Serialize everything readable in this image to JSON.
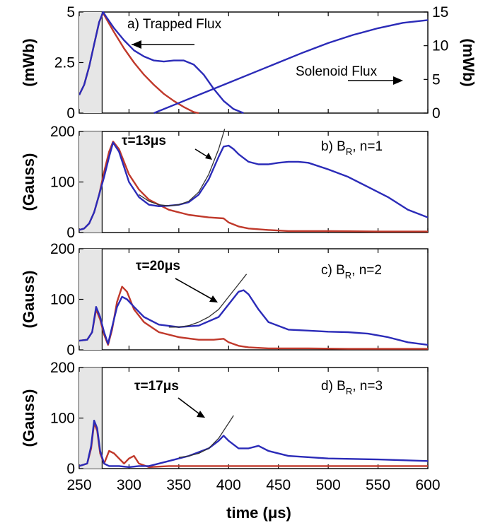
{
  "colors": {
    "blue": "#2b2bb8",
    "red": "#c0392b",
    "fit": "#333333",
    "shade": "#e6e6e6"
  },
  "chart_data": [
    {
      "type": "line",
      "panel": "a",
      "label": "a) Trapped Flux",
      "annotation_right": "Solenoid Flux",
      "ylabel": "(mWb)",
      "ylabel_right": "(mWb)",
      "xlim": [
        250,
        600
      ],
      "ylim": [
        0,
        5
      ],
      "ylim_right": [
        0,
        15
      ],
      "yticks": [
        "0",
        "2.5",
        "5"
      ],
      "yticks_right": [
        "0",
        "5",
        "10",
        "15"
      ],
      "shaded_x": [
        250,
        273
      ],
      "vline_x": 273,
      "series": [
        {
          "color": "red",
          "x": [
            250,
            255,
            260,
            265,
            270,
            274,
            278,
            285,
            295,
            305,
            315,
            325,
            335,
            345,
            355,
            365,
            370
          ],
          "y": [
            0.9,
            1.4,
            2.3,
            3.4,
            4.5,
            4.95,
            4.6,
            4.0,
            3.2,
            2.5,
            1.9,
            1.4,
            0.95,
            0.6,
            0.3,
            0.05,
            0.0
          ]
        },
        {
          "color": "blue",
          "x": [
            250,
            255,
            260,
            265,
            270,
            274,
            278,
            285,
            295,
            305,
            315,
            325,
            335,
            345,
            355,
            365,
            375,
            385,
            395,
            405,
            415
          ],
          "y": [
            0.9,
            1.4,
            2.3,
            3.4,
            4.5,
            5.0,
            4.7,
            4.2,
            3.6,
            3.1,
            2.8,
            2.6,
            2.55,
            2.6,
            2.6,
            2.4,
            1.9,
            1.2,
            0.6,
            0.2,
            0.0
          ]
        },
        {
          "color": "blue",
          "axis": "right",
          "x": [
            325,
            350,
            375,
            400,
            425,
            450,
            475,
            500,
            525,
            550,
            575,
            600
          ],
          "y": [
            0.0,
            1.5,
            3.0,
            4.5,
            6.0,
            7.5,
            9.0,
            10.4,
            11.6,
            12.6,
            13.4,
            13.8
          ]
        }
      ]
    },
    {
      "type": "line",
      "panel": "b",
      "label_main": "b) B",
      "label_sub": "R",
      "label_tail": ", n=1",
      "tau": "τ=13μs",
      "ylabel": "(Gauss)",
      "xlim": [
        250,
        600
      ],
      "ylim": [
        0,
        200
      ],
      "yticks": [
        "0",
        "100",
        "200"
      ],
      "shaded_x": [
        250,
        273
      ],
      "vline_x": 273,
      "series": [
        {
          "color": "red",
          "x": [
            250,
            255,
            260,
            265,
            270,
            275,
            280,
            284,
            290,
            295,
            300,
            310,
            320,
            330,
            340,
            360,
            380,
            395,
            400,
            410,
            420,
            440,
            460,
            500,
            550,
            600
          ],
          "y": [
            5,
            8,
            18,
            40,
            75,
            120,
            160,
            180,
            165,
            140,
            115,
            85,
            65,
            55,
            45,
            35,
            30,
            28,
            20,
            12,
            8,
            5,
            3,
            3,
            2,
            2
          ]
        },
        {
          "color": "blue",
          "x": [
            250,
            255,
            260,
            265,
            270,
            275,
            280,
            284,
            290,
            295,
            300,
            310,
            320,
            330,
            340,
            350,
            360,
            370,
            380,
            390,
            395,
            400,
            405,
            410,
            420,
            430,
            440,
            450,
            460,
            470,
            480,
            500,
            520,
            540,
            560,
            580,
            600
          ],
          "y": [
            5,
            8,
            18,
            40,
            75,
            110,
            150,
            178,
            160,
            130,
            100,
            70,
            55,
            52,
            53,
            55,
            60,
            75,
            105,
            150,
            170,
            172,
            165,
            155,
            140,
            135,
            135,
            138,
            140,
            140,
            138,
            125,
            110,
            90,
            70,
            45,
            30
          ]
        },
        {
          "color": "fit",
          "x": [
            310,
            320,
            330,
            340,
            350,
            360,
            370,
            380,
            390,
            396
          ],
          "y": [
            75,
            62,
            55,
            53,
            55,
            62,
            80,
            115,
            165,
            205
          ]
        }
      ]
    },
    {
      "type": "line",
      "panel": "c",
      "label_main": "c) B",
      "label_sub": "R",
      "label_tail": ", n=2",
      "tau": "τ=20μs",
      "ylabel": "(Gauss)",
      "xlim": [
        250,
        600
      ],
      "ylim": [
        0,
        200
      ],
      "yticks": [
        "0",
        "100",
        "200"
      ],
      "shaded_x": [
        250,
        273
      ],
      "vline_x": 273,
      "series": [
        {
          "color": "red",
          "x": [
            250,
            258,
            263,
            267,
            271,
            275,
            279,
            283,
            288,
            293,
            298,
            305,
            315,
            330,
            350,
            370,
            385,
            395,
            400,
            410,
            420,
            440,
            480,
            520,
            560,
            600
          ],
          "y": [
            18,
            20,
            35,
            80,
            60,
            30,
            10,
            40,
            95,
            125,
            115,
            80,
            55,
            35,
            25,
            20,
            20,
            22,
            15,
            8,
            5,
            3,
            3,
            2,
            2,
            2
          ]
        },
        {
          "color": "blue",
          "x": [
            250,
            258,
            263,
            267,
            271,
            275,
            279,
            283,
            288,
            293,
            298,
            305,
            315,
            330,
            350,
            370,
            390,
            400,
            410,
            415,
            420,
            430,
            440,
            460,
            480,
            500,
            520,
            540,
            560,
            580,
            600
          ],
          "y": [
            18,
            20,
            35,
            85,
            65,
            35,
            12,
            45,
            85,
            105,
            100,
            85,
            65,
            50,
            45,
            48,
            65,
            90,
            115,
            118,
            110,
            80,
            55,
            40,
            38,
            36,
            35,
            32,
            25,
            15,
            10
          ]
        },
        {
          "color": "fit",
          "x": [
            340,
            350,
            360,
            370,
            380,
            390,
            400,
            410,
            418
          ],
          "y": [
            45,
            45,
            48,
            55,
            65,
            80,
            105,
            130,
            150
          ]
        }
      ]
    },
    {
      "type": "line",
      "panel": "d",
      "label_main": "d) B",
      "label_sub": "R",
      "label_tail": ", n=3",
      "tau": "τ=17μs",
      "ylabel": "(Gauss)",
      "xlim": [
        250,
        600
      ],
      "ylim": [
        0,
        200
      ],
      "yticks": [
        "0",
        "100",
        "200"
      ],
      "shaded_x": [
        250,
        273
      ],
      "vline_x": 273,
      "series": [
        {
          "color": "red",
          "x": [
            250,
            258,
            262,
            265,
            268,
            271,
            275,
            280,
            285,
            290,
            295,
            300,
            305,
            310,
            320,
            340,
            360,
            400,
            450,
            500,
            550,
            600
          ],
          "y": [
            5,
            10,
            40,
            90,
            75,
            30,
            10,
            35,
            30,
            20,
            10,
            20,
            25,
            10,
            3,
            5,
            5,
            5,
            5,
            5,
            5,
            5
          ]
        },
        {
          "color": "blue",
          "x": [
            250,
            258,
            262,
            265,
            268,
            271,
            275,
            280,
            290,
            300,
            310,
            320,
            340,
            360,
            380,
            390,
            395,
            400,
            410,
            420,
            430,
            440,
            460,
            500,
            550,
            600
          ],
          "y": [
            5,
            10,
            45,
            95,
            80,
            35,
            10,
            5,
            5,
            3,
            5,
            5,
            15,
            25,
            40,
            55,
            65,
            55,
            40,
            40,
            45,
            35,
            25,
            20,
            18,
            15
          ]
        },
        {
          "color": "fit",
          "x": [
            350,
            360,
            370,
            380,
            390,
            400,
            405
          ],
          "y": [
            22,
            25,
            30,
            40,
            60,
            90,
            105
          ]
        }
      ]
    }
  ],
  "x_axis": {
    "label": "time (μs)",
    "ticks": [
      "250",
      "300",
      "350",
      "400",
      "450",
      "500",
      "550",
      "600"
    ]
  }
}
